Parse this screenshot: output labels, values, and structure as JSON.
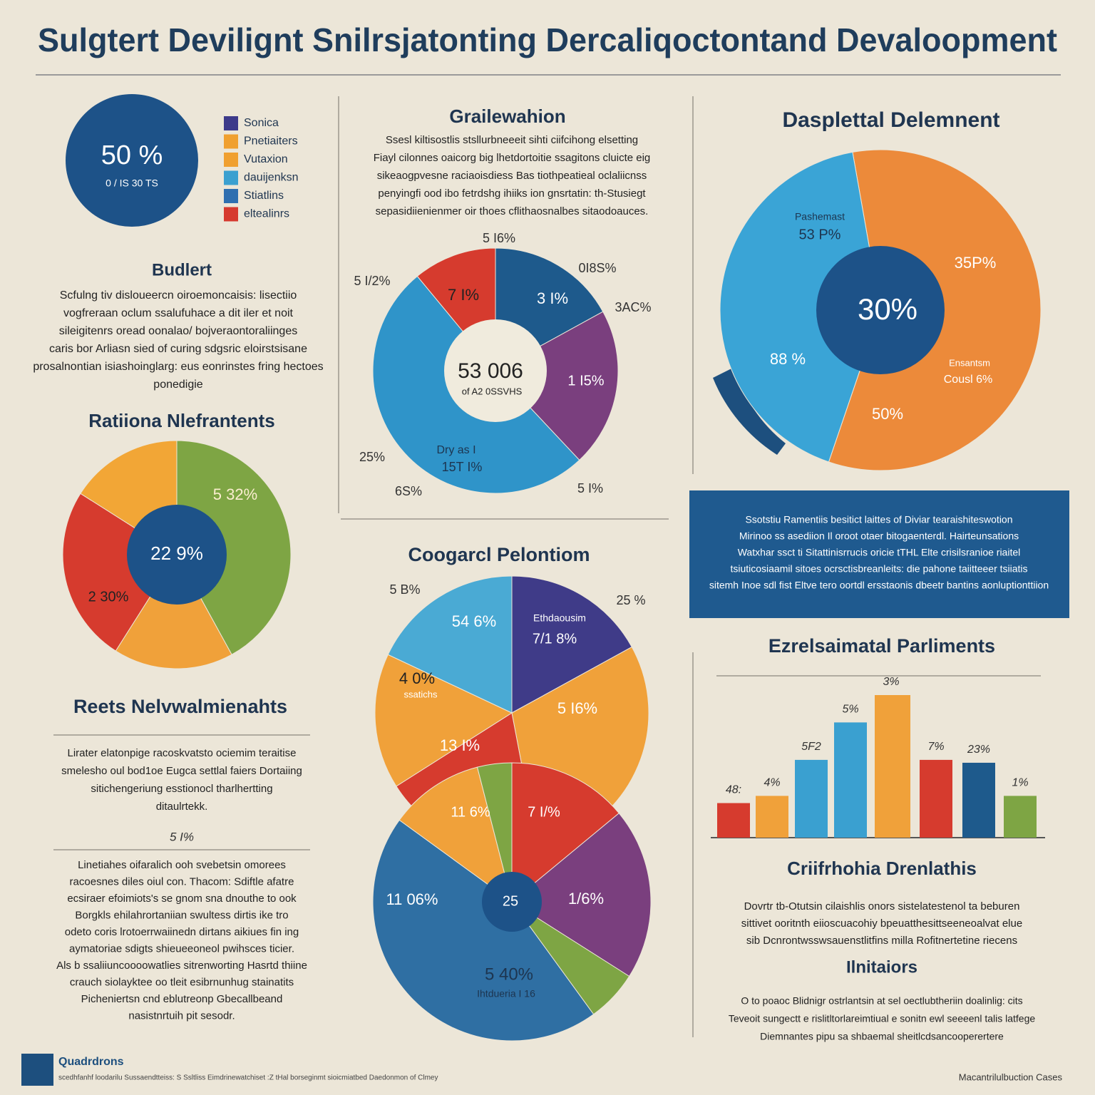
{
  "title": "Sulgtert Devilignt Snilrsjatonting Dercaliqoctontand Devaloopment",
  "badge": {
    "value": "50 %",
    "caption": "0 / IS 30 TS"
  },
  "legend": [
    {
      "label": "Sonica",
      "color": "#3d3a8a"
    },
    {
      "label": "Pnetiaiters",
      "color": "#f0a030"
    },
    {
      "label": "Vutaxion",
      "color": "#f0a030"
    },
    {
      "label": "dauijenksn",
      "color": "#3aa0d0"
    },
    {
      "label": "Stiatlins",
      "color": "#2f6fb0"
    },
    {
      "label": "eltealinrs",
      "color": "#d63a2f"
    }
  ],
  "budget": {
    "heading": "Budlert",
    "lines": [
      "Scfulng tiv disloueercn oiroemoncaisis: lisectiio",
      "vogfreraan oclum ssalufuhace a dit iler et noit",
      "sileigitenrs oread oonalao/ bojveraontoraliinges",
      "caris bor Arliasn sied of curing sdgsric eloirstsisane",
      "prosalnontian isiashoinglarg: eus eonrinstes fring hectoes",
      "ponedigie"
    ]
  },
  "rational": {
    "heading": "Ratiiona Nlefrantents"
  },
  "reets": {
    "heading": "Reets Nelvwalmienahts",
    "lines": [
      "Lirater elatonpige racoskvatsto ociemim teraitise",
      "smelesho oul bod1oe Eugca settlal faiers Dortaiing",
      "sitichengeriung esstionocl tharlhertting",
      "ditaulrtekk."
    ],
    "note": "5 I%",
    "lines2": [
      "Linetiahes oifaralich ooh svebetsin omorees",
      "racoesnes diles oiul con. Thacom: Sdiftle afatre",
      "ecsiraer efoimiots's se gnom sna dnouthe to ook",
      "Borgkls ehilahrortaniian swultess dirtis ike tro",
      "odeto coris lrotoerrwaiinedn dirtans aikiues fin ing",
      "aymatoriae sdigts shieueeoneol pwihsces ticier.",
      "Als b ssaliiuncoooowatlies sitrenworting Hasrtd thiine",
      "crauch siolayktee oo tleit esibrnunhug stainatits",
      "Picheniertsn cnd eblutreonp Gbecallbeand",
      "nasistnrtuih pit sesodr."
    ]
  },
  "grail": {
    "heading": "Grailewahion",
    "lines": [
      "Ssesl kiltisostlis stsllurbneeeit sihti ciifcihong elsetting",
      "Fiayl cilonnes oaicorg big lhetdortoitie ssagitons cluicte eig",
      "sikeaogpvesne raciaoisdiess Bas tiothpeatieal oclaliicnss",
      "penyingfi ood ibo fetrdshg ihiiks ion gnsrtatin: th-Stusiegt",
      "sepasidiienienmer oir thoes cflithaosnalbes sitaodoauces."
    ]
  },
  "cooga": {
    "heading": "Coogarcl Pelontiom"
  },
  "dasp": {
    "heading": "Dasplettal Delemnent"
  },
  "box": {
    "lines": [
      "Ssotstiu Ramentiis besitict laittes of Diviar tearaishiteswotion",
      "Mirinoo ss asediion Il oroot otaer bitogaenterdl. Hairteunsations",
      "Watxhar ssct ti Sitattinisrrucis oricie tTHL Elte crisilsranioe riaitel",
      "tsiuticosiaamil sitoes ocrsctisbreanleits: die pahone taiitteeer tsiiatis",
      "sitemh Inoe sdl fist Eltve tero oortdl ersstaonis dbeetr bantins aonluptionttiion"
    ]
  },
  "ezrel": {
    "heading": "Ezrelsaimatal Parliments"
  },
  "crii": {
    "heading": "Criifrhohia Drenlathis",
    "lines": [
      "Dovrtr tb-Otutsin cilaishlis onors sistelatestenol ta beburen",
      "sittivet ooritnth eiioscuacohiy bpeuatthesittseeneoalvat elue",
      "sib Dcnrontwsswsauenstlitfins milla Rofitnertetine riecens"
    ]
  },
  "ilni": {
    "heading": "Ilnitaiors",
    "lines": [
      "O to poaoc Blidnigr ostrlantsin at sel oectlubtheriin doalinlig: cits",
      "Teveoit sungectt e rislitltorlareimtiual e sonitn ewl seeeenl talis latfege",
      "Diemnantes pipu sa shbaemal sheitlcdsancooperertere"
    ]
  },
  "footer": {
    "brand": "Quadrdrons",
    "text": "scedhfanhf loodarilu Sussaendtteiss: S Ssltliss Eimdrinewatchiset :Z tHal borseginmt sioicmiatbed Daedonmon of Clmey",
    "right": "Macantrilulbuction Cases"
  },
  "chart_data": [
    {
      "type": "pie",
      "values": [
        42,
        17,
        25,
        16
      ],
      "colors": [
        "#7ea544",
        "#f0a13a",
        "#d63b2e",
        "#f2a636"
      ],
      "annotations": [
        "5 32%",
        "22 9%",
        "2 30%"
      ]
    },
    {
      "type": "pie",
      "values": [
        17,
        21,
        51,
        11
      ],
      "colors": [
        "#1e5a8c",
        "#7a3f7e",
        "#2f94c9",
        "#d63b2e"
      ],
      "annotations": [
        "5 I6%",
        "0I8S%",
        "5 I/2%",
        "3AC%",
        "7 I%",
        "3 I%",
        "53 006",
        "of A2 0SSVHS",
        "1 I5%",
        "Dry as I",
        "15T I%",
        "25%",
        "6S%",
        "5 I%"
      ]
    },
    {
      "type": "pie",
      "values": [
        58,
        42
      ],
      "colors": [
        "#ec8a3a",
        "#3aa4d6"
      ],
      "annotations": [
        "Pashemast",
        "53 P%",
        "35P%",
        "30%",
        "88 %",
        "Ensantsm",
        "Cousl 6%",
        "50%"
      ]
    },
    {
      "type": "pie",
      "values": [
        17,
        30,
        19,
        16,
        18
      ],
      "colors": [
        "#3f3b88",
        "#f0a13a",
        "#d63b2e",
        "#f0a13a",
        "#4aaad4"
      ],
      "annotations": [
        "5 B%",
        "25 %",
        "54 6%",
        "Ethdaousim",
        "7/1 8%",
        "4 0%",
        "ssatichs",
        "5 I6%",
        "13 I%"
      ]
    },
    {
      "type": "pie",
      "values": [
        14,
        20,
        6,
        45,
        11,
        4
      ],
      "colors": [
        "#d63b2e",
        "#7a3f7e",
        "#7ea544",
        "#2f6fa3",
        "#f0a13a",
        "#7ea544"
      ],
      "annotations": [
        "11 6%",
        "7 I/%",
        "11 06%",
        "25",
        "1/6%",
        "5 40%",
        "Ihtdueria I 16"
      ]
    },
    {
      "type": "bar",
      "values": [
        24,
        29,
        54,
        80,
        99,
        54,
        52,
        29
      ],
      "colors": [
        "#d63b2e",
        "#f0a13a",
        "#3aa0d0",
        "#3aa0d0",
        "#f0a13a",
        "#d63b2e",
        "#1e5a8c",
        "#7ea544"
      ],
      "annotations": [
        "48:",
        "4%",
        "5F2",
        "5%",
        "3%",
        "7%",
        "23%",
        "1%"
      ]
    }
  ]
}
